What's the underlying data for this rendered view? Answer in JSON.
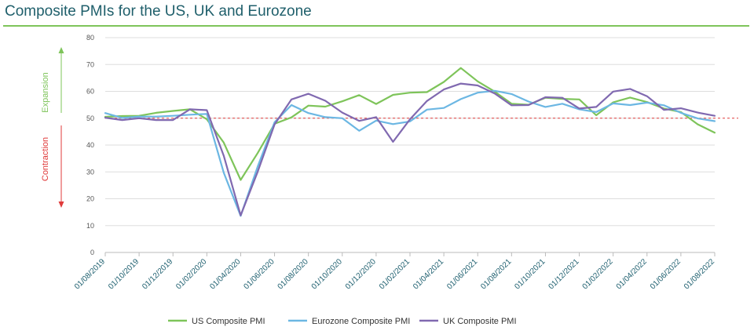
{
  "title": "Composite PMIs for the US, UK and Eurozone",
  "colors": {
    "us": "#7ec45a",
    "eurozone": "#6cb7e3",
    "uk": "#8069b0",
    "threshold": "#e03b3b",
    "expansion": "#7ec45a",
    "contraction": "#e03b3b",
    "rule": "#7ec45a",
    "grid": "#dddddd"
  },
  "labels": {
    "expansion": "Expansion",
    "contraction": "Contraction"
  },
  "chart_data": {
    "type": "line",
    "title": "Composite PMIs for the US, UK and Eurozone",
    "ylim": [
      0,
      80
    ],
    "yticks": [
      0,
      10,
      20,
      30,
      40,
      50,
      60,
      70,
      80
    ],
    "threshold": 50,
    "grid": "horizontal",
    "legend_position": "bottom",
    "x": [
      "01/08/2019",
      "01/09/2019",
      "01/10/2019",
      "01/11/2019",
      "01/12/2019",
      "01/01/2020",
      "01/02/2020",
      "01/03/2020",
      "01/04/2020",
      "01/05/2020",
      "01/06/2020",
      "01/07/2020",
      "01/08/2020",
      "01/09/2020",
      "01/10/2020",
      "01/11/2020",
      "01/12/2020",
      "01/01/2021",
      "01/02/2021",
      "01/03/2021",
      "01/04/2021",
      "01/05/2021",
      "01/06/2021",
      "01/07/2021",
      "01/08/2021",
      "01/09/2021",
      "01/10/2021",
      "01/11/2021",
      "01/12/2021",
      "01/01/2022",
      "01/02/2022",
      "01/03/2022",
      "01/04/2022",
      "01/05/2022",
      "01/06/2022",
      "01/07/2022",
      "01/08/2022"
    ],
    "xtick_labels": [
      "01/08/2019",
      "01/10/2019",
      "01/12/2019",
      "01/02/2020",
      "01/04/2020",
      "01/06/2020",
      "01/08/2020",
      "01/10/2020",
      "01/12/2020",
      "01/02/2021",
      "01/04/2021",
      "01/06/2021",
      "01/08/2021",
      "01/10/2021",
      "01/12/2021",
      "01/02/2022",
      "01/04/2022",
      "01/06/2022",
      "01/08/2022"
    ],
    "series": [
      {
        "name": "US Composite PMI",
        "key": "us",
        "values": [
          50.5,
          50.8,
          50.9,
          52.0,
          52.7,
          53.3,
          49.6,
          40.9,
          27.0,
          37.0,
          47.9,
          50.3,
          54.7,
          54.3,
          56.3,
          58.6,
          55.3,
          58.7,
          59.5,
          59.7,
          63.5,
          68.7,
          63.7,
          59.9,
          55.4,
          55.0,
          57.6,
          57.2,
          57.0,
          51.1,
          55.9,
          57.7,
          56.0,
          53.6,
          52.3,
          47.7,
          44.6
        ]
      },
      {
        "name": "Eurozone Composite PMI",
        "key": "eurozone",
        "values": [
          51.9,
          50.1,
          50.6,
          50.6,
          50.9,
          51.3,
          51.6,
          29.7,
          13.6,
          31.9,
          48.5,
          54.9,
          51.9,
          50.4,
          50.0,
          45.3,
          49.1,
          47.8,
          48.8,
          53.2,
          53.8,
          57.1,
          59.5,
          60.2,
          59.0,
          56.2,
          54.2,
          55.4,
          53.3,
          52.3,
          55.5,
          54.9,
          55.8,
          54.8,
          52.0,
          49.9,
          48.9
        ]
      },
      {
        "name": "UK Composite PMI",
        "key": "uk",
        "values": [
          50.2,
          49.3,
          50.0,
          49.3,
          49.3,
          53.3,
          53.0,
          36.0,
          13.8,
          30.0,
          47.7,
          57.0,
          59.1,
          56.5,
          52.1,
          49.0,
          50.4,
          41.2,
          49.6,
          56.4,
          60.7,
          62.9,
          62.2,
          59.2,
          54.8,
          54.9,
          57.8,
          57.6,
          53.6,
          54.2,
          59.9,
          60.9,
          58.2,
          53.1,
          53.7,
          52.1,
          50.9
        ]
      }
    ]
  }
}
